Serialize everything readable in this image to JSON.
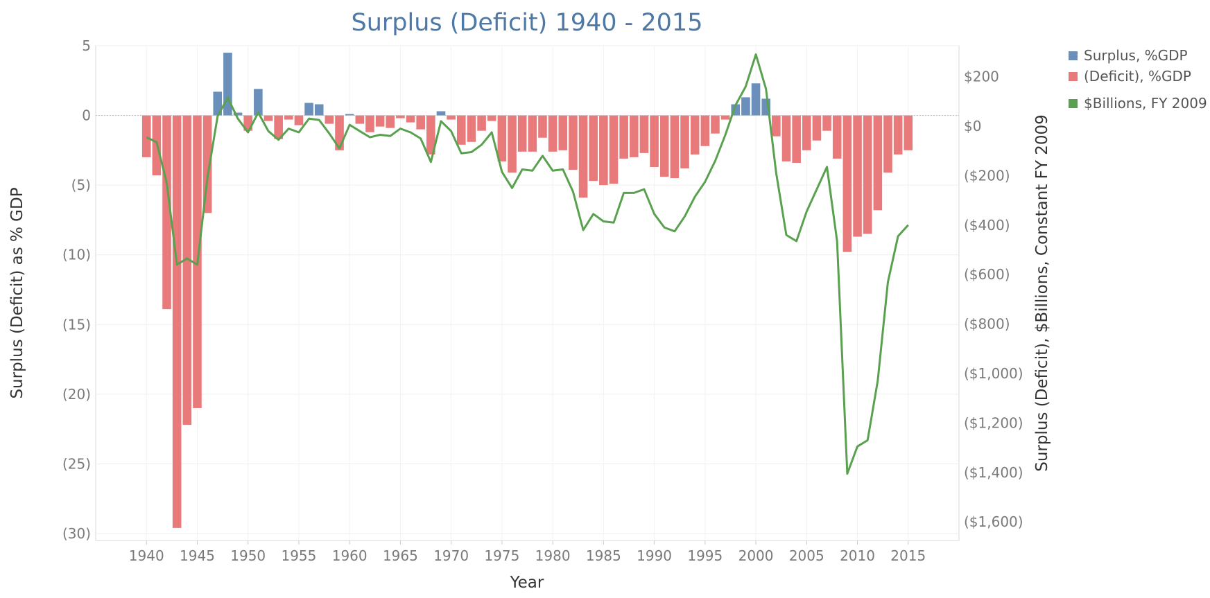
{
  "chart_data": {
    "type": "bar+line",
    "title": "Surplus (Deficit) 1940 - 2015",
    "xlabel": "Year",
    "ylabel_left": "Surplus (Deficit) as % GDP",
    "ylabel_right": "Surplus (Deficit), $Billions, Constant FY 2009",
    "left_axis": {
      "range": [
        -30.5,
        5
      ],
      "ticks": [
        5,
        0,
        -5,
        -10,
        -15,
        -20,
        -25,
        -30
      ],
      "tick_labels": [
        "5",
        "0",
        "(5)",
        "(10)",
        "(15)",
        "(20)",
        "(25)",
        "(30)"
      ]
    },
    "right_axis": {
      "range": [
        -1675,
        325
      ],
      "ticks": [
        200,
        0,
        -200,
        -400,
        -600,
        -800,
        -1000,
        -1200,
        -1400,
        -1600
      ],
      "tick_labels": [
        "$200",
        "$0",
        "($200)",
        "($400)",
        "($600)",
        "($800)",
        "($1,000)",
        "($1,200)",
        "($1,400)",
        "($1,600)"
      ]
    },
    "x_axis": {
      "range": [
        1935,
        2020
      ],
      "ticks": [
        1940,
        1945,
        1950,
        1955,
        1960,
        1965,
        1970,
        1975,
        1980,
        1985,
        1990,
        1995,
        2000,
        2005,
        2010,
        2015
      ]
    },
    "years": [
      1940,
      1941,
      1942,
      1943,
      1944,
      1945,
      1946,
      1947,
      1948,
      1949,
      1950,
      1951,
      1952,
      1953,
      1954,
      1955,
      1956,
      1957,
      1958,
      1959,
      1960,
      1961,
      1962,
      1963,
      1964,
      1965,
      1966,
      1967,
      1968,
      1969,
      1970,
      1971,
      1972,
      1973,
      1974,
      1975,
      1976,
      1977,
      1978,
      1979,
      1980,
      1981,
      1982,
      1983,
      1984,
      1985,
      1986,
      1987,
      1988,
      1989,
      1990,
      1991,
      1992,
      1993,
      1994,
      1995,
      1996,
      1997,
      1998,
      1999,
      2000,
      2001,
      2002,
      2003,
      2004,
      2005,
      2006,
      2007,
      2008,
      2009,
      2010,
      2011,
      2012,
      2013,
      2014,
      2015
    ],
    "gdp_pct": [
      -3.0,
      -4.3,
      -13.9,
      -29.6,
      -22.2,
      -21.0,
      -7.0,
      1.7,
      4.5,
      0.2,
      -1.1,
      1.9,
      -0.4,
      -1.7,
      -0.3,
      -0.7,
      0.9,
      0.8,
      -0.6,
      -2.5,
      0.1,
      -0.6,
      -1.2,
      -0.8,
      -0.9,
      -0.2,
      -0.5,
      -1.0,
      -2.8,
      0.3,
      -0.3,
      -2.1,
      -1.9,
      -1.1,
      -0.4,
      -3.3,
      -4.1,
      -2.6,
      -2.6,
      -1.6,
      -2.6,
      -2.5,
      -3.9,
      -5.9,
      -4.7,
      -5.0,
      -4.9,
      -3.1,
      -3.0,
      -2.7,
      -3.7,
      -4.4,
      -4.5,
      -3.8,
      -2.8,
      -2.2,
      -1.3,
      -0.3,
      0.8,
      1.3,
      2.3,
      1.2,
      -1.5,
      -3.3,
      -3.4,
      -2.5,
      -1.8,
      -1.1,
      -3.1,
      -9.8,
      -8.7,
      -8.5,
      -6.8,
      -4.1,
      -2.8,
      -2.5
    ],
    "billions_fy2009": [
      -45,
      -65,
      -230,
      -560,
      -535,
      -560,
      -210,
      40,
      115,
      30,
      -25,
      55,
      -20,
      -55,
      -10,
      -25,
      30,
      25,
      -30,
      -90,
      5,
      -20,
      -45,
      -35,
      -40,
      -10,
      -25,
      -50,
      -145,
      20,
      -20,
      -110,
      -105,
      -75,
      -25,
      -185,
      -250,
      -175,
      -180,
      -120,
      -180,
      -175,
      -265,
      -420,
      -355,
      -385,
      -390,
      -270,
      -270,
      -255,
      -355,
      -410,
      -425,
      -365,
      -285,
      -225,
      -140,
      -35,
      85,
      160,
      290,
      150,
      -190,
      -440,
      -465,
      -345,
      -255,
      -165,
      -465,
      -1405,
      -1295,
      -1270,
      -1030,
      -630,
      -445,
      -400
    ],
    "series": [
      {
        "name": "Surplus, %GDP",
        "color": "#6a8fbb"
      },
      {
        "name": "(Deficit), %GDP",
        "color": "#e87a7b"
      },
      {
        "name": "$Billions, FY 2009",
        "color": "#59a14f"
      }
    ],
    "title_color": "#4e79a7",
    "legend_position": "right"
  }
}
